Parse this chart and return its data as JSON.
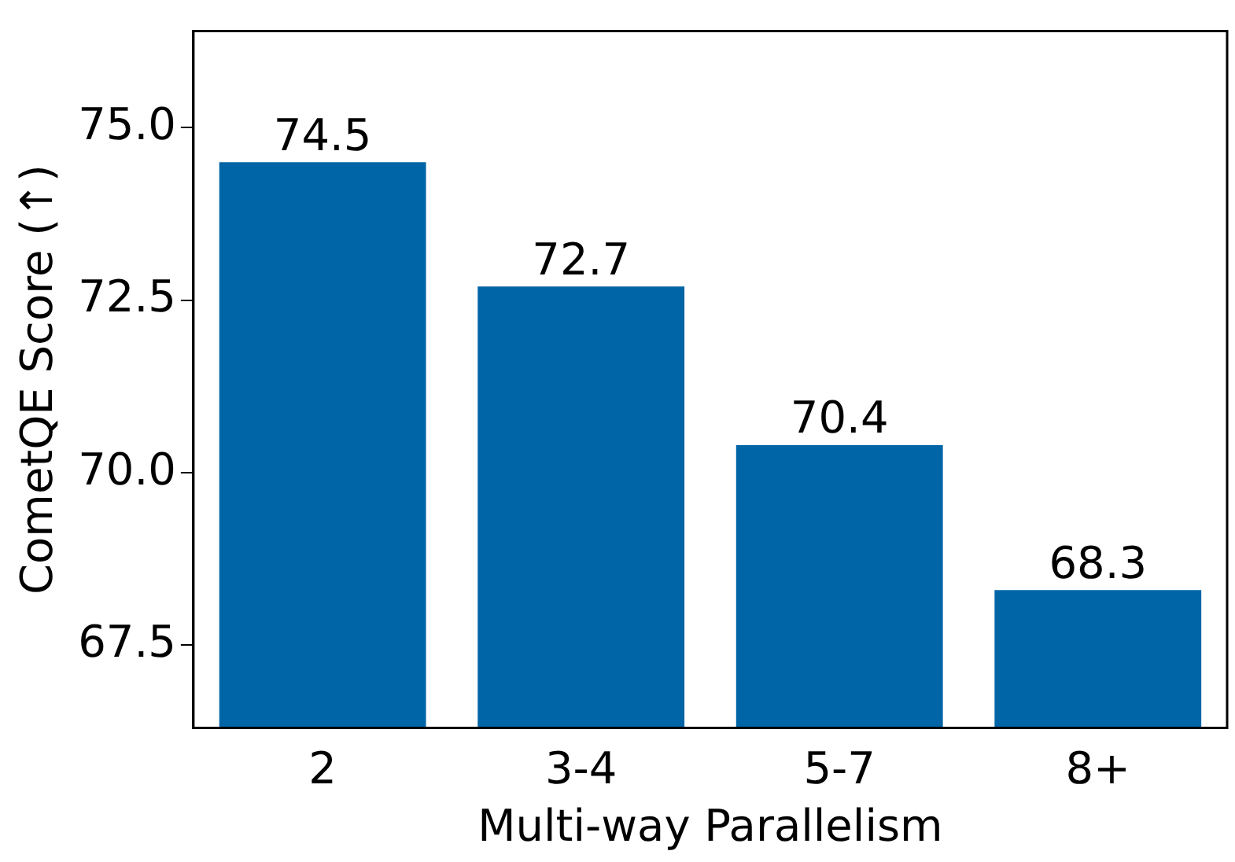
{
  "chart_data": {
    "type": "bar",
    "xlabel": "Multi-way Parallelism",
    "ylabel": "CometQE Score (↑)",
    "categories": [
      "2",
      "3-4",
      "5-7",
      "8+"
    ],
    "values": [
      74.5,
      72.7,
      70.4,
      68.3
    ],
    "color": "#0065a7",
    "ylim": [
      66.3,
      76.4
    ],
    "yticks": [
      {
        "value": 67.5,
        "label": "67.5"
      },
      {
        "value": 70,
        "label": "70.0"
      },
      {
        "value": 72.5,
        "label": "72.5"
      },
      {
        "value": 75,
        "label": "75.0"
      }
    ],
    "grid": false,
    "data_labels": true
  }
}
